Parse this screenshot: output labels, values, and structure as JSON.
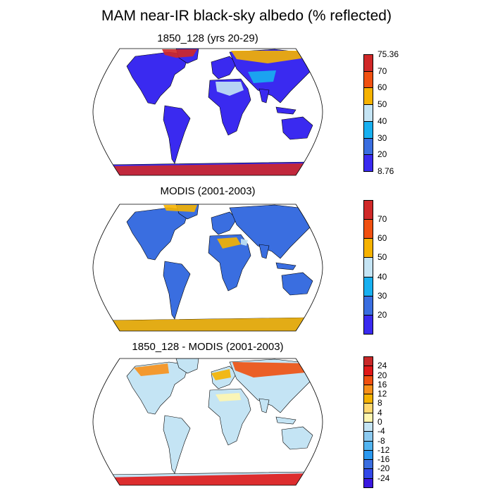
{
  "title": "MAM near-IR black-sky albedo (% reflected)",
  "colors": {
    "land_low": "#3a6ee0",
    "deep_blue": "#3a2af0",
    "ocean": "#ffffff",
    "outline": "#000000"
  },
  "panels": [
    {
      "id": "model",
      "subtitle": "1850_128 (yrs 20-29)",
      "colorbar": {
        "colors": [
          "#3a2af0",
          "#3a6ee0",
          "#18b0f0",
          "#c4e4f4",
          "#f6b200",
          "#f05010",
          "#d02828"
        ],
        "labels": [
          "70",
          "60",
          "50",
          "40",
          "30",
          "20"
        ],
        "max_label": "75.36",
        "min_label": "8.76"
      }
    },
    {
      "id": "obs",
      "subtitle": "MODIS (2001-2003)",
      "colorbar": {
        "colors": [
          "#3a2af0",
          "#3a6ee0",
          "#18b0f0",
          "#c4e4f4",
          "#f6b200",
          "#f05010",
          "#d02828"
        ],
        "labels": [
          "70",
          "60",
          "50",
          "40",
          "30",
          "20"
        ]
      }
    },
    {
      "id": "diff",
      "subtitle": "1850_128 - MODIS (2001-2003)",
      "colorbar": {
        "colors": [
          "#3a18e0",
          "#3248e8",
          "#3a6ee0",
          "#2a98f0",
          "#52b4f0",
          "#8ccaf0",
          "#c4e4f4",
          "#fff6b0",
          "#ffd870",
          "#f6b200",
          "#f8901a",
          "#f05010",
          "#e01818",
          "#c82828"
        ],
        "labels": [
          "24",
          "20",
          "16",
          "12",
          "8",
          "4",
          "0",
          "-4",
          "-8",
          "-12",
          "-16",
          "-20",
          "-24"
        ]
      }
    }
  ]
}
